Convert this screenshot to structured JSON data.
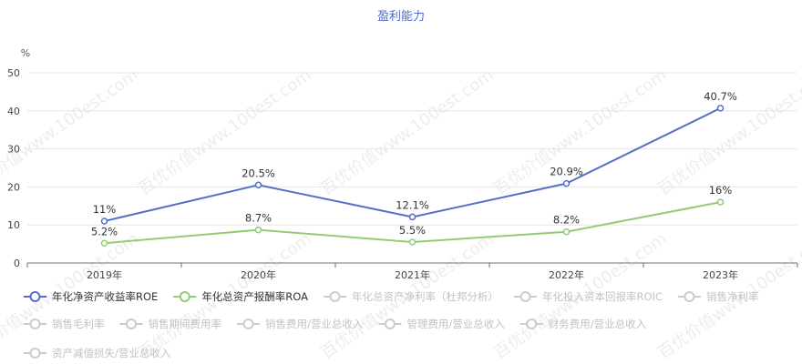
{
  "chart_data": {
    "type": "line",
    "title": "盈利能力",
    "y_unit": "%",
    "ylim": [
      0,
      50
    ],
    "yticks": [
      0,
      10,
      20,
      30,
      40,
      50
    ],
    "categories": [
      "2019年",
      "2020年",
      "2021年",
      "2022年",
      "2023年"
    ],
    "series": [
      {
        "name": "年化净资产收益率ROE",
        "color": "#5470c6",
        "values": [
          11,
          20.5,
          12.1,
          20.9,
          40.7
        ],
        "labels": [
          "11%",
          "20.5%",
          "12.1%",
          "20.9%",
          "40.7%"
        ]
      },
      {
        "name": "年化总资产报酬率ROA",
        "color": "#91cc75",
        "values": [
          5.2,
          8.7,
          5.5,
          8.2,
          16
        ],
        "labels": [
          "5.2%",
          "8.7%",
          "5.5%",
          "8.2%",
          "16%"
        ]
      }
    ],
    "legend_inactive": [
      "年化总资产净利率（杜邦分析）",
      "年化投入资本回报率ROIC",
      "销售净利率",
      "销售毛利率",
      "销售期间费用率",
      "销售费用/营业总收入",
      "管理费用/营业总收入",
      "财务费用/营业总收入",
      "资产减值损失/营业总收入"
    ],
    "legend_inactive_color": "#cccccc",
    "legend_placement": "bottom",
    "grid": true,
    "watermark": "百优价值www.100est.com"
  }
}
